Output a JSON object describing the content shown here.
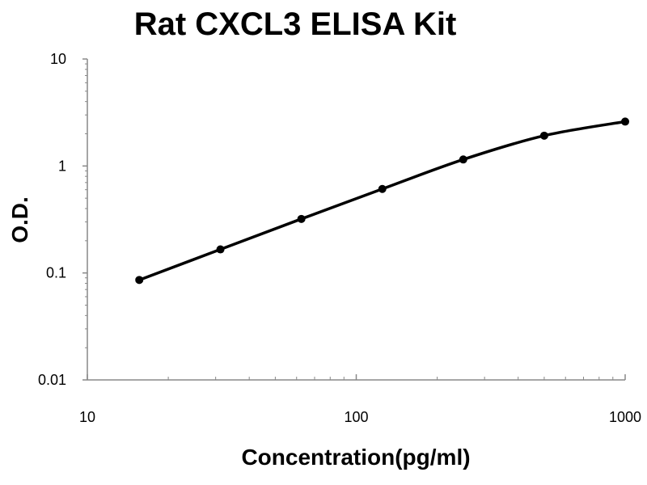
{
  "chart_data": {
    "type": "line",
    "title": "Rat CXCL3 ELISA Kit",
    "xlabel": "Concentration(pg/ml)",
    "ylabel": "O.D.",
    "x_scale": "log",
    "y_scale": "log",
    "xlim": [
      10,
      1000
    ],
    "ylim": [
      0.01,
      10
    ],
    "x_ticks": [
      "10",
      "100",
      "1000"
    ],
    "y_ticks": [
      "0.01",
      "0.1",
      "1",
      "10"
    ],
    "grid": false,
    "legend": "none",
    "series": [
      {
        "x": [
          15.6,
          31.25,
          62.5,
          125,
          250,
          500,
          1000
        ],
        "y": [
          0.086,
          0.166,
          0.32,
          0.61,
          1.15,
          1.92,
          2.6
        ],
        "color": "#000000",
        "marker": "circle"
      }
    ]
  }
}
